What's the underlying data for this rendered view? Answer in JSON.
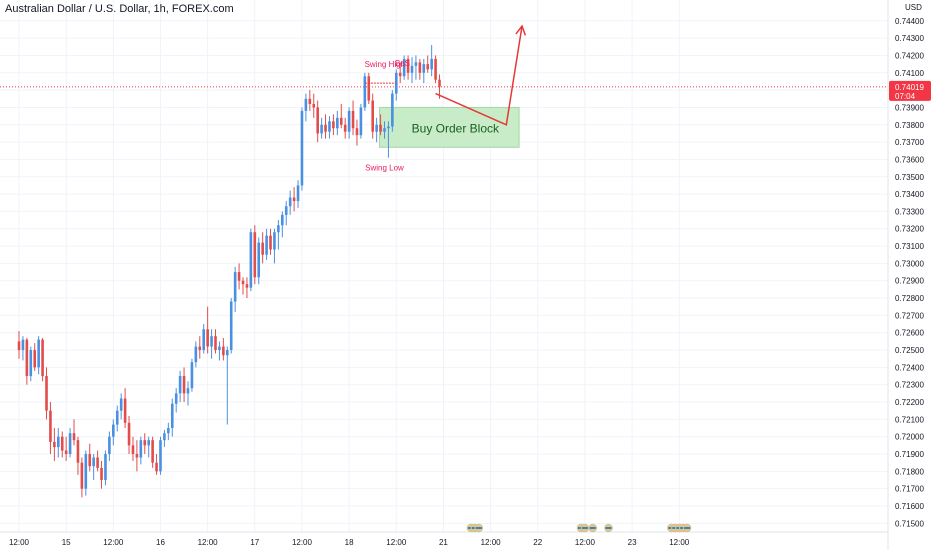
{
  "symbol_title": "Australian Dollar / U.S. Dollar, 1h, FOREX.com",
  "currency_label": "USD",
  "colors": {
    "up": "#4a90e2",
    "down": "#e24c4b",
    "current_price": "#f23645",
    "order_block_fill": "#c8ebc8",
    "order_block_text": "#1b5e20",
    "annotation": "#e91e63",
    "arrow": "#e53935",
    "grid": "#f0f3fa",
    "axis_text": "#131722"
  },
  "chart_data": {
    "type": "candlestick",
    "y_axis": {
      "min": 0.7145,
      "max": 0.7452,
      "ticks": [
        "0.71500",
        "0.71600",
        "0.71700",
        "0.71800",
        "0.71900",
        "0.72000",
        "0.72100",
        "0.72200",
        "0.72300",
        "0.72400",
        "0.72500",
        "0.72600",
        "0.72700",
        "0.72800",
        "0.72900",
        "0.73000",
        "0.73100",
        "0.73200",
        "0.73300",
        "0.73400",
        "0.73500",
        "0.73600",
        "0.73700",
        "0.73800",
        "0.73900",
        "0.74000",
        "0.74100",
        "0.74200",
        "0.74300",
        "0.74400"
      ]
    },
    "x_axis": {
      "labels": [
        {
          "text": "12:00",
          "hour": 0
        },
        {
          "text": "15",
          "hour": 12
        },
        {
          "text": "12:00",
          "hour": 24
        },
        {
          "text": "16",
          "hour": 36
        },
        {
          "text": "12:00",
          "hour": 48
        },
        {
          "text": "17",
          "hour": 60
        },
        {
          "text": "12:00",
          "hour": 72
        },
        {
          "text": "18",
          "hour": 84
        },
        {
          "text": "12:00",
          "hour": 96
        },
        {
          "text": "21",
          "hour": 108
        },
        {
          "text": "12:00",
          "hour": 120
        },
        {
          "text": "22",
          "hour": 132
        },
        {
          "text": "12:00",
          "hour": 144
        },
        {
          "text": "23",
          "hour": 156
        },
        {
          "text": "12:00",
          "hour": 168
        }
      ]
    },
    "candles": [
      {
        "o": 0.7255,
        "h": 0.7261,
        "l": 0.7245,
        "c": 0.725
      },
      {
        "o": 0.725,
        "h": 0.7258,
        "l": 0.7244,
        "c": 0.7256
      },
      {
        "o": 0.7256,
        "h": 0.7257,
        "l": 0.723,
        "c": 0.7235
      },
      {
        "o": 0.7235,
        "h": 0.7252,
        "l": 0.7232,
        "c": 0.725
      },
      {
        "o": 0.725,
        "h": 0.7254,
        "l": 0.7238,
        "c": 0.724
      },
      {
        "o": 0.724,
        "h": 0.7258,
        "l": 0.7236,
        "c": 0.7256
      },
      {
        "o": 0.7256,
        "h": 0.7257,
        "l": 0.7232,
        "c": 0.7235
      },
      {
        "o": 0.7235,
        "h": 0.724,
        "l": 0.721,
        "c": 0.7215
      },
      {
        "o": 0.7215,
        "h": 0.722,
        "l": 0.719,
        "c": 0.7197
      },
      {
        "o": 0.7197,
        "h": 0.7205,
        "l": 0.7186,
        "c": 0.7194
      },
      {
        "o": 0.7194,
        "h": 0.7205,
        "l": 0.7188,
        "c": 0.72
      },
      {
        "o": 0.72,
        "h": 0.7203,
        "l": 0.7188,
        "c": 0.7192
      },
      {
        "o": 0.7192,
        "h": 0.72,
        "l": 0.7186,
        "c": 0.719
      },
      {
        "o": 0.719,
        "h": 0.7205,
        "l": 0.7188,
        "c": 0.7202
      },
      {
        "o": 0.7202,
        "h": 0.721,
        "l": 0.7195,
        "c": 0.7198
      },
      {
        "o": 0.7198,
        "h": 0.72,
        "l": 0.7178,
        "c": 0.7185
      },
      {
        "o": 0.7185,
        "h": 0.7188,
        "l": 0.7165,
        "c": 0.717
      },
      {
        "o": 0.717,
        "h": 0.7192,
        "l": 0.7166,
        "c": 0.719
      },
      {
        "o": 0.719,
        "h": 0.7196,
        "l": 0.718,
        "c": 0.7183
      },
      {
        "o": 0.7183,
        "h": 0.719,
        "l": 0.7175,
        "c": 0.7188
      },
      {
        "o": 0.7188,
        "h": 0.7192,
        "l": 0.718,
        "c": 0.7182
      },
      {
        "o": 0.7182,
        "h": 0.7186,
        "l": 0.717,
        "c": 0.7175
      },
      {
        "o": 0.7175,
        "h": 0.7192,
        "l": 0.7172,
        "c": 0.719
      },
      {
        "o": 0.719,
        "h": 0.7203,
        "l": 0.7186,
        "c": 0.72
      },
      {
        "o": 0.72,
        "h": 0.721,
        "l": 0.7195,
        "c": 0.7207
      },
      {
        "o": 0.7207,
        "h": 0.7218,
        "l": 0.7203,
        "c": 0.7215
      },
      {
        "o": 0.7215,
        "h": 0.7225,
        "l": 0.721,
        "c": 0.7222
      },
      {
        "o": 0.7222,
        "h": 0.7228,
        "l": 0.7205,
        "c": 0.7208
      },
      {
        "o": 0.7208,
        "h": 0.7212,
        "l": 0.719,
        "c": 0.7195
      },
      {
        "o": 0.7195,
        "h": 0.72,
        "l": 0.7186,
        "c": 0.719
      },
      {
        "o": 0.719,
        "h": 0.7198,
        "l": 0.718,
        "c": 0.7188
      },
      {
        "o": 0.7188,
        "h": 0.72,
        "l": 0.7184,
        "c": 0.7198
      },
      {
        "o": 0.7198,
        "h": 0.7202,
        "l": 0.719,
        "c": 0.7195
      },
      {
        "o": 0.7195,
        "h": 0.72,
        "l": 0.7188,
        "c": 0.7198
      },
      {
        "o": 0.7198,
        "h": 0.72,
        "l": 0.7182,
        "c": 0.7185
      },
      {
        "o": 0.7185,
        "h": 0.719,
        "l": 0.7178,
        "c": 0.718
      },
      {
        "o": 0.718,
        "h": 0.72,
        "l": 0.7178,
        "c": 0.7198
      },
      {
        "o": 0.7198,
        "h": 0.7204,
        "l": 0.7194,
        "c": 0.7202
      },
      {
        "o": 0.7202,
        "h": 0.7208,
        "l": 0.7198,
        "c": 0.7205
      },
      {
        "o": 0.7205,
        "h": 0.7222,
        "l": 0.72,
        "c": 0.7219
      },
      {
        "o": 0.7219,
        "h": 0.7228,
        "l": 0.7214,
        "c": 0.7225
      },
      {
        "o": 0.7225,
        "h": 0.7238,
        "l": 0.722,
        "c": 0.7235
      },
      {
        "o": 0.7235,
        "h": 0.724,
        "l": 0.722,
        "c": 0.7225
      },
      {
        "o": 0.7225,
        "h": 0.7232,
        "l": 0.7218,
        "c": 0.7228
      },
      {
        "o": 0.7228,
        "h": 0.7245,
        "l": 0.7226,
        "c": 0.7243
      },
      {
        "o": 0.7243,
        "h": 0.7255,
        "l": 0.724,
        "c": 0.7252
      },
      {
        "o": 0.7252,
        "h": 0.7258,
        "l": 0.7245,
        "c": 0.725
      },
      {
        "o": 0.725,
        "h": 0.7265,
        "l": 0.7248,
        "c": 0.7262
      },
      {
        "o": 0.7262,
        "h": 0.7275,
        "l": 0.7248,
        "c": 0.7252
      },
      {
        "o": 0.7252,
        "h": 0.7262,
        "l": 0.7245,
        "c": 0.7258
      },
      {
        "o": 0.7258,
        "h": 0.7262,
        "l": 0.7248,
        "c": 0.725
      },
      {
        "o": 0.725,
        "h": 0.7255,
        "l": 0.7244,
        "c": 0.7252
      },
      {
        "o": 0.7252,
        "h": 0.7257,
        "l": 0.7244,
        "c": 0.7247
      },
      {
        "o": 0.7247,
        "h": 0.7252,
        "l": 0.7207,
        "c": 0.725
      },
      {
        "o": 0.725,
        "h": 0.728,
        "l": 0.7248,
        "c": 0.7278
      },
      {
        "o": 0.7278,
        "h": 0.7298,
        "l": 0.7272,
        "c": 0.7295
      },
      {
        "o": 0.7295,
        "h": 0.73,
        "l": 0.7285,
        "c": 0.729
      },
      {
        "o": 0.729,
        "h": 0.7292,
        "l": 0.7282,
        "c": 0.7288
      },
      {
        "o": 0.7288,
        "h": 0.7292,
        "l": 0.728,
        "c": 0.7286
      },
      {
        "o": 0.7286,
        "h": 0.732,
        "l": 0.7284,
        "c": 0.7318
      },
      {
        "o": 0.7318,
        "h": 0.7322,
        "l": 0.7288,
        "c": 0.7292
      },
      {
        "o": 0.7292,
        "h": 0.7315,
        "l": 0.7288,
        "c": 0.7312
      },
      {
        "o": 0.7312,
        "h": 0.7318,
        "l": 0.73,
        "c": 0.7305
      },
      {
        "o": 0.7305,
        "h": 0.732,
        "l": 0.7302,
        "c": 0.7316
      },
      {
        "o": 0.7316,
        "h": 0.732,
        "l": 0.7305,
        "c": 0.7308
      },
      {
        "o": 0.7308,
        "h": 0.732,
        "l": 0.73,
        "c": 0.7318
      },
      {
        "o": 0.7318,
        "h": 0.7325,
        "l": 0.7308,
        "c": 0.7322
      },
      {
        "o": 0.7322,
        "h": 0.733,
        "l": 0.7315,
        "c": 0.7328
      },
      {
        "o": 0.7328,
        "h": 0.7336,
        "l": 0.7322,
        "c": 0.7333
      },
      {
        "o": 0.7333,
        "h": 0.7342,
        "l": 0.7328,
        "c": 0.7338
      },
      {
        "o": 0.7338,
        "h": 0.7344,
        "l": 0.733,
        "c": 0.7336
      },
      {
        "o": 0.7336,
        "h": 0.7348,
        "l": 0.7332,
        "c": 0.7345
      },
      {
        "o": 0.7345,
        "h": 0.739,
        "l": 0.7342,
        "c": 0.7388
      },
      {
        "o": 0.7388,
        "h": 0.7398,
        "l": 0.7382,
        "c": 0.7395
      },
      {
        "o": 0.7395,
        "h": 0.74,
        "l": 0.7388,
        "c": 0.7392
      },
      {
        "o": 0.7392,
        "h": 0.7398,
        "l": 0.7384,
        "c": 0.739
      },
      {
        "o": 0.739,
        "h": 0.7394,
        "l": 0.737,
        "c": 0.7375
      },
      {
        "o": 0.7375,
        "h": 0.7384,
        "l": 0.7372,
        "c": 0.738
      },
      {
        "o": 0.738,
        "h": 0.7386,
        "l": 0.7372,
        "c": 0.7376
      },
      {
        "o": 0.7376,
        "h": 0.7385,
        "l": 0.7372,
        "c": 0.7382
      },
      {
        "o": 0.7382,
        "h": 0.7386,
        "l": 0.7374,
        "c": 0.7378
      },
      {
        "o": 0.7378,
        "h": 0.7388,
        "l": 0.7374,
        "c": 0.7384
      },
      {
        "o": 0.7384,
        "h": 0.7392,
        "l": 0.7378,
        "c": 0.738
      },
      {
        "o": 0.738,
        "h": 0.7384,
        "l": 0.7372,
        "c": 0.7376
      },
      {
        "o": 0.7376,
        "h": 0.739,
        "l": 0.7372,
        "c": 0.7388
      },
      {
        "o": 0.7388,
        "h": 0.7394,
        "l": 0.7374,
        "c": 0.7378
      },
      {
        "o": 0.7378,
        "h": 0.7383,
        "l": 0.7368,
        "c": 0.7374
      },
      {
        "o": 0.7374,
        "h": 0.7392,
        "l": 0.7372,
        "c": 0.739
      },
      {
        "o": 0.739,
        "h": 0.741,
        "l": 0.7388,
        "c": 0.7408
      },
      {
        "o": 0.7408,
        "h": 0.741,
        "l": 0.7392,
        "c": 0.7394
      },
      {
        "o": 0.7394,
        "h": 0.7398,
        "l": 0.7372,
        "c": 0.7376
      },
      {
        "o": 0.7376,
        "h": 0.7384,
        "l": 0.737,
        "c": 0.738
      },
      {
        "o": 0.738,
        "h": 0.7386,
        "l": 0.7374,
        "c": 0.7376
      },
      {
        "o": 0.7376,
        "h": 0.7382,
        "l": 0.7372,
        "c": 0.7378
      },
      {
        "o": 0.7378,
        "h": 0.7382,
        "l": 0.7361,
        "c": 0.7379
      },
      {
        "o": 0.7379,
        "h": 0.74,
        "l": 0.7376,
        "c": 0.7398
      },
      {
        "o": 0.7398,
        "h": 0.7412,
        "l": 0.7394,
        "c": 0.741
      },
      {
        "o": 0.741,
        "h": 0.7416,
        "l": 0.7404,
        "c": 0.7408
      },
      {
        "o": 0.7408,
        "h": 0.742,
        "l": 0.7406,
        "c": 0.7418
      },
      {
        "o": 0.7418,
        "h": 0.742,
        "l": 0.7406,
        "c": 0.741
      },
      {
        "o": 0.741,
        "h": 0.7419,
        "l": 0.7404,
        "c": 0.7414
      },
      {
        "o": 0.7414,
        "h": 0.742,
        "l": 0.7406,
        "c": 0.7416
      },
      {
        "o": 0.7416,
        "h": 0.7418,
        "l": 0.7406,
        "c": 0.741
      },
      {
        "o": 0.741,
        "h": 0.7418,
        "l": 0.7404,
        "c": 0.7415
      },
      {
        "o": 0.7415,
        "h": 0.742,
        "l": 0.741,
        "c": 0.7412
      },
      {
        "o": 0.7412,
        "h": 0.7426,
        "l": 0.7408,
        "c": 0.7418
      },
      {
        "o": 0.7418,
        "h": 0.742,
        "l": 0.7404,
        "c": 0.7406
      },
      {
        "o": 0.7406,
        "h": 0.7409,
        "l": 0.7395,
        "c": 0.7402
      }
    ],
    "current_price": {
      "value": 0.74019,
      "label": "0.74019",
      "countdown": "07:04"
    },
    "annotations": {
      "bos": {
        "text": "BoS",
        "price": 0.7404,
        "from_index": 88,
        "to_index": 96
      },
      "swing_high": {
        "text": "Swing High",
        "price": 0.741,
        "index": 88
      },
      "swing_low": {
        "text": "Swing Low",
        "price": 0.7361,
        "index": 93
      },
      "order_block": {
        "text": "Buy Order Block",
        "top": 0.739,
        "bottom": 0.7367,
        "from_index": 92,
        "to_index": 127
      },
      "projection": {
        "points": [
          {
            "index": 106,
            "price": 0.7398
          },
          {
            "index": 124,
            "price": 0.738
          },
          {
            "index": 128,
            "price": 0.7437
          }
        ]
      }
    },
    "events_at_hours": [
      115,
      116,
      117,
      143,
      144,
      146,
      150,
      166,
      167,
      168,
      169,
      170
    ]
  }
}
